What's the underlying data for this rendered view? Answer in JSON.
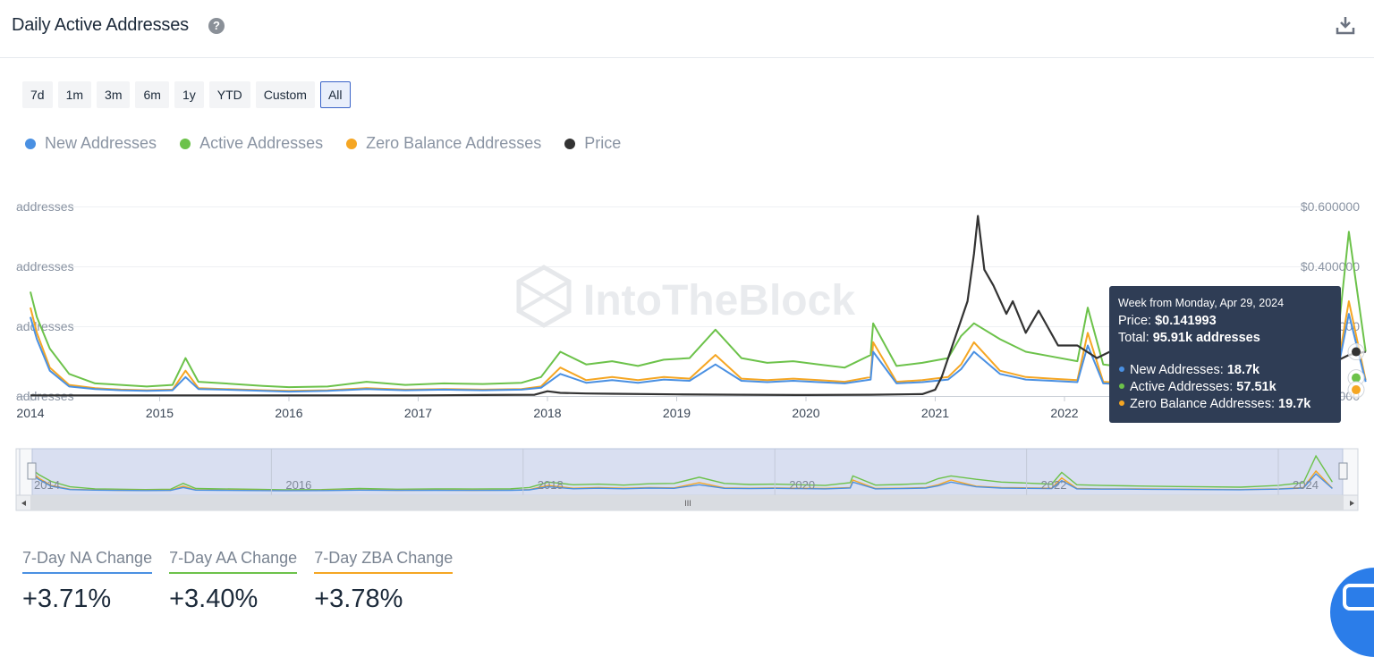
{
  "header": {
    "title": "Daily Active Addresses",
    "help_glyph": "?"
  },
  "ranges": [
    {
      "label": "7d",
      "active": false
    },
    {
      "label": "1m",
      "active": false
    },
    {
      "label": "3m",
      "active": false
    },
    {
      "label": "6m",
      "active": false
    },
    {
      "label": "1y",
      "active": false
    },
    {
      "label": "YTD",
      "active": false
    },
    {
      "label": "Custom",
      "active": false
    },
    {
      "label": "All",
      "active": true
    }
  ],
  "legend": [
    {
      "label": "New Addresses",
      "color": "#4a90e2"
    },
    {
      "label": "Active Addresses",
      "color": "#6cc24a"
    },
    {
      "label": "Zero Balance Addresses",
      "color": "#f5a623"
    },
    {
      "label": "Price",
      "color": "#333333"
    }
  ],
  "watermark": "IntoTheBlock",
  "chart_data": {
    "type": "line",
    "x_ticks": [
      "2014",
      "2015",
      "2016",
      "2017",
      "2018",
      "2019",
      "2020",
      "2021",
      "2022"
    ],
    "y_left_ticks": [
      "addresses",
      "addresses",
      "addresses",
      "addresses"
    ],
    "y_right_ticks": [
      "$0.600000",
      "$0.400000",
      "$0.200000",
      "$0.000000"
    ],
    "right_range": [
      0,
      0.6
    ],
    "series": [
      {
        "name": "Active Addresses",
        "color": "#6cc24a",
        "x": [
          2014.0,
          2014.05,
          2014.15,
          2014.3,
          2014.5,
          2014.7,
          2014.9,
          2015.1,
          2015.2,
          2015.3,
          2015.5,
          2015.8,
          2016.0,
          2016.3,
          2016.6,
          2016.9,
          2017.2,
          2017.5,
          2017.8,
          2017.95,
          2018.1,
          2018.3,
          2018.5,
          2018.7,
          2018.9,
          2019.1,
          2019.3,
          2019.5,
          2019.7,
          2019.9,
          2020.1,
          2020.3,
          2020.5,
          2020.52,
          2020.7,
          2020.9,
          2021.1,
          2021.2,
          2021.3,
          2021.5,
          2021.7,
          2021.9,
          2022.1,
          2022.18,
          2022.3,
          2022.5,
          2022.7,
          2022.9,
          2023.1,
          2023.3,
          2023.6,
          2023.9,
          2024.1,
          2024.2,
          2024.33
        ],
        "values": [
          330,
          250,
          150,
          70,
          40,
          35,
          30,
          35,
          120,
          45,
          40,
          32,
          28,
          30,
          45,
          35,
          40,
          38,
          42,
          60,
          140,
          100,
          110,
          95,
          115,
          120,
          210,
          120,
          105,
          110,
          100,
          90,
          130,
          230,
          95,
          105,
          120,
          190,
          230,
          180,
          140,
          125,
          110,
          280,
          100,
          90,
          85,
          80,
          75,
          70,
          65,
          90,
          130,
          520,
          140
        ]
      },
      {
        "name": "Zero Balance Addresses",
        "color": "#f5a623",
        "x": [
          2014.0,
          2014.05,
          2014.15,
          2014.3,
          2014.5,
          2014.7,
          2014.9,
          2015.1,
          2015.2,
          2015.3,
          2015.5,
          2015.8,
          2016.0,
          2016.3,
          2016.6,
          2016.9,
          2017.2,
          2017.5,
          2017.8,
          2017.95,
          2018.1,
          2018.3,
          2018.5,
          2018.7,
          2018.9,
          2019.1,
          2019.3,
          2019.5,
          2019.7,
          2019.9,
          2020.1,
          2020.3,
          2020.5,
          2020.52,
          2020.7,
          2020.9,
          2021.1,
          2021.2,
          2021.3,
          2021.5,
          2021.7,
          2021.9,
          2022.1,
          2022.18,
          2022.3,
          2022.5,
          2022.7,
          2022.9,
          2023.1,
          2023.3,
          2023.6,
          2023.9,
          2024.1,
          2024.2,
          2024.33
        ],
        "values": [
          280,
          200,
          90,
          35,
          25,
          20,
          18,
          20,
          80,
          25,
          22,
          18,
          16,
          18,
          25,
          20,
          22,
          20,
          22,
          30,
          90,
          50,
          60,
          50,
          60,
          55,
          130,
          55,
          50,
          55,
          50,
          45,
          60,
          170,
          45,
          50,
          60,
          100,
          170,
          80,
          60,
          55,
          50,
          200,
          45,
          40,
          40,
          38,
          35,
          33,
          30,
          40,
          60,
          300,
          50
        ]
      },
      {
        "name": "New Addresses",
        "color": "#4a90e2",
        "x": [
          2014.0,
          2014.05,
          2014.15,
          2014.3,
          2014.5,
          2014.7,
          2014.9,
          2015.1,
          2015.2,
          2015.3,
          2015.5,
          2015.8,
          2016.0,
          2016.3,
          2016.6,
          2016.9,
          2017.2,
          2017.5,
          2017.8,
          2017.95,
          2018.1,
          2018.3,
          2018.5,
          2018.7,
          2018.9,
          2019.1,
          2019.3,
          2019.5,
          2019.7,
          2019.9,
          2020.1,
          2020.3,
          2020.5,
          2020.52,
          2020.7,
          2020.9,
          2021.1,
          2021.2,
          2021.3,
          2021.5,
          2021.7,
          2021.9,
          2022.1,
          2022.18,
          2022.3,
          2022.5,
          2022.7,
          2022.9,
          2023.1,
          2023.3,
          2023.6,
          2023.9,
          2024.1,
          2024.2,
          2024.33
        ],
        "values": [
          250,
          180,
          80,
          30,
          22,
          18,
          16,
          18,
          60,
          22,
          20,
          16,
          14,
          16,
          22,
          18,
          20,
          18,
          20,
          26,
          70,
          42,
          50,
          42,
          52,
          48,
          100,
          48,
          44,
          48,
          44,
          40,
          52,
          140,
          40,
          44,
          52,
          85,
          140,
          70,
          52,
          48,
          44,
          160,
          40,
          36,
          36,
          34,
          32,
          30,
          28,
          36,
          52,
          260,
          45
        ]
      },
      {
        "name": "Price",
        "color": "#333333",
        "x": [
          2014.0,
          2014.5,
          2015.0,
          2015.5,
          2016.0,
          2016.5,
          2017.0,
          2017.5,
          2017.9,
          2018.0,
          2018.1,
          2018.3,
          2018.5,
          2019.0,
          2019.5,
          2020.0,
          2020.5,
          2020.9,
          2021.0,
          2021.05,
          2021.25,
          2021.3,
          2021.33,
          2021.38,
          2021.45,
          2021.55,
          2021.6,
          2021.7,
          2021.8,
          2021.95,
          2022.1,
          2022.25,
          2022.4,
          2022.6,
          2022.9,
          2023.3,
          2023.7,
          2024.0,
          2024.2,
          2024.33
        ],
        "values": [
          0.002,
          0.002,
          0.002,
          0.002,
          0.002,
          0.002,
          0.002,
          0.003,
          0.004,
          0.015,
          0.01,
          0.008,
          0.007,
          0.005,
          0.004,
          0.003,
          0.004,
          0.006,
          0.02,
          0.06,
          0.3,
          0.45,
          0.57,
          0.4,
          0.35,
          0.26,
          0.3,
          0.2,
          0.27,
          0.16,
          0.16,
          0.12,
          0.15,
          0.1,
          0.09,
          0.08,
          0.07,
          0.09,
          0.13,
          0.14
        ]
      }
    ]
  },
  "navigator": {
    "x_ticks": [
      "2014",
      "2016",
      "2018",
      "2020",
      "2022",
      "2024"
    ],
    "handle_glyph": "III"
  },
  "tooltip": {
    "week": "Week from Monday, Apr 29, 2024",
    "price_label": "Price: ",
    "price_value": "$0.141993",
    "total_label": "Total: ",
    "total_value": "95.91k addresses",
    "new_label": "New Addresses: ",
    "new_value": "18.7k",
    "active_label": "Active Addresses: ",
    "active_value": "57.51k",
    "zero_label": "Zero Balance Addresses: ",
    "zero_value": "19.7k"
  },
  "stats": [
    {
      "label": "7-Day NA Change",
      "value": "+3.71%",
      "color": "#4a90e2"
    },
    {
      "label": "7-Day AA Change",
      "value": "+3.40%",
      "color": "#6cc24a"
    },
    {
      "label": "7-Day ZBA Change",
      "value": "+3.78%",
      "color": "#f5a623"
    }
  ]
}
